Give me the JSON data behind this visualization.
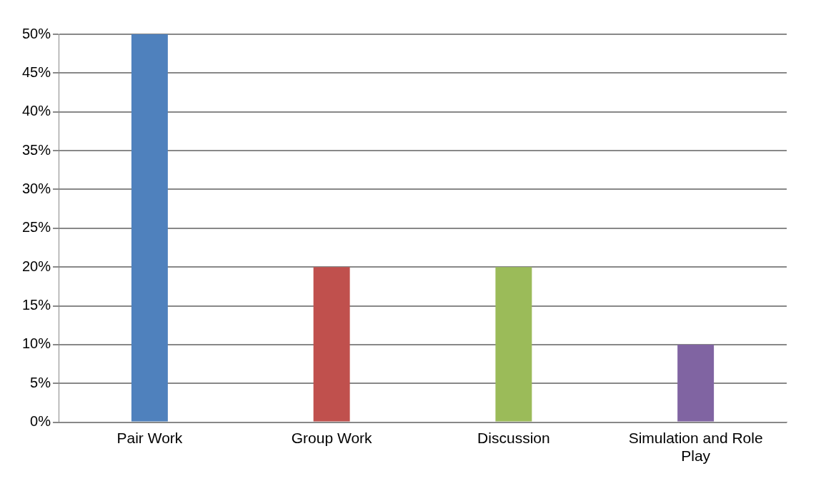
{
  "chart_data": {
    "type": "bar",
    "categories": [
      "Pair Work",
      "Group Work",
      "Discussion",
      "Simulation and Role Play"
    ],
    "values": [
      50,
      20,
      20,
      10
    ],
    "colors": [
      "#4f81bd",
      "#c0504d",
      "#9bbb59",
      "#8064a2"
    ],
    "ylim": [
      0,
      50
    ],
    "yticks": [
      {
        "value": 0,
        "label": "0%"
      },
      {
        "value": 5,
        "label": "5%"
      },
      {
        "value": 10,
        "label": "10%"
      },
      {
        "value": 15,
        "label": "15%"
      },
      {
        "value": 20,
        "label": "20%"
      },
      {
        "value": 25,
        "label": "25%"
      },
      {
        "value": 30,
        "label": "30%"
      },
      {
        "value": 35,
        "label": "35%"
      },
      {
        "value": 40,
        "label": "40%"
      },
      {
        "value": 45,
        "label": "45%"
      },
      {
        "value": 50,
        "label": "50%"
      }
    ],
    "grid": "y"
  }
}
